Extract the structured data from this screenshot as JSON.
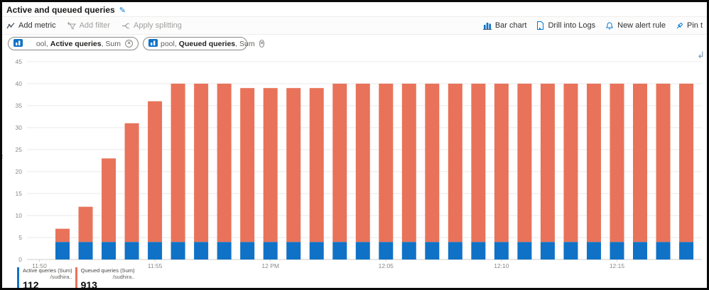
{
  "header": {
    "title": "Active and queued queries"
  },
  "toolbar": {
    "left": [
      {
        "label": "Add metric",
        "enabled": true
      },
      {
        "label": "Add filter",
        "enabled": false
      },
      {
        "label": "Apply splitting",
        "enabled": false
      }
    ],
    "right": [
      {
        "label": "Bar chart"
      },
      {
        "label": "Drill into Logs"
      },
      {
        "label": "New alert rule"
      },
      {
        "label": "Pin t"
      }
    ]
  },
  "metric_pills": [
    {
      "parts": [
        "ool, ",
        "Active queries",
        ", Sum"
      ]
    },
    {
      "parts": [
        "pool, ",
        "Queued queries",
        ", Sum"
      ]
    }
  ],
  "legend": [
    {
      "name": "Active queries (Sum)",
      "resource": "/sudhira..",
      "value": "112",
      "color": "#1072c6"
    },
    {
      "name": "Queued queries (Sum)",
      "resource": "/sudhira..",
      "value": "913",
      "color": "#e8735a"
    }
  ],
  "colors": {
    "accent": "#0078d4",
    "active_series": "#1072c6",
    "queued_series": "#e8735a"
  },
  "chart_data": {
    "type": "bar",
    "stacked": true,
    "x": [
      "11:51",
      "11:52",
      "11:53",
      "11:54",
      "11:55",
      "11:56",
      "11:57",
      "11:58",
      "11:59",
      "12:00",
      "12:01",
      "12:02",
      "12:03",
      "12:04",
      "12:05",
      "12:06",
      "12:07",
      "12:08",
      "12:09",
      "12:10",
      "12:11",
      "12:12",
      "12:13",
      "12:14",
      "12:15",
      "12:16",
      "12:17",
      "12:18"
    ],
    "series": [
      {
        "name": "Active queries (Sum)",
        "color": "#1072c6",
        "values": [
          4,
          4,
          4,
          4,
          4,
          4,
          4,
          4,
          4,
          4,
          4,
          4,
          4,
          4,
          4,
          4,
          4,
          4,
          4,
          4,
          4,
          4,
          4,
          4,
          4,
          4,
          4,
          4
        ]
      },
      {
        "name": "Queued queries (Sum)",
        "color": "#e8735a",
        "values": [
          3,
          8,
          19,
          27,
          32,
          36,
          36,
          36,
          35,
          35,
          35,
          35,
          36,
          36,
          36,
          36,
          36,
          36,
          36,
          36,
          36,
          36,
          36,
          36,
          36,
          36,
          36,
          36
        ]
      }
    ],
    "ylim": [
      0,
      45
    ],
    "y_ticks": [
      0,
      5,
      10,
      15,
      20,
      25,
      30,
      35,
      40,
      45
    ],
    "x_tick_labels": [
      "11:50",
      "11:55",
      "12 PM",
      "12:05",
      "12:10",
      "12:15"
    ],
    "grid": true,
    "legend_position": "bottom"
  }
}
